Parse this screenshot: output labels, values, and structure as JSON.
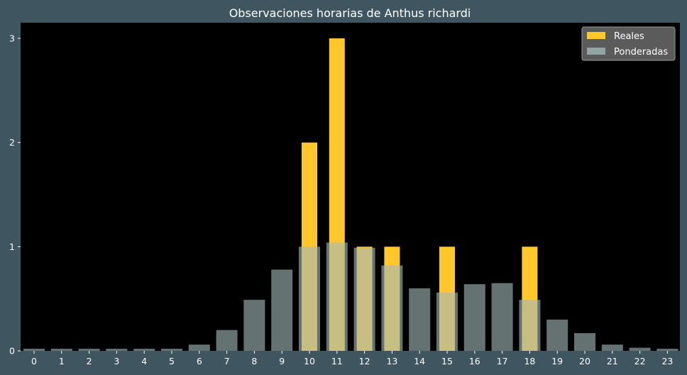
{
  "chart_data": {
    "type": "bar",
    "title": "Observaciones horarias de Anthus richardi",
    "xlabel": "",
    "ylabel": "",
    "categories": [
      "0",
      "1",
      "2",
      "3",
      "4",
      "5",
      "6",
      "7",
      "8",
      "9",
      "10",
      "11",
      "12",
      "13",
      "14",
      "15",
      "16",
      "17",
      "18",
      "19",
      "20",
      "21",
      "22",
      "23"
    ],
    "series": [
      {
        "name": "Reales",
        "color": "#ffc72c",
        "values": [
          0,
          0,
          0,
          0,
          0,
          0,
          0,
          0,
          0,
          0,
          2,
          3,
          1,
          1,
          0,
          1,
          0,
          0,
          1,
          0,
          0,
          0,
          0,
          0
        ]
      },
      {
        "name": "Ponderadas",
        "color": "#a3b8b8",
        "values": [
          0.02,
          0.02,
          0.02,
          0.02,
          0.02,
          0.02,
          0.06,
          0.2,
          0.49,
          0.78,
          1.0,
          1.04,
          0.99,
          0.82,
          0.6,
          0.56,
          0.64,
          0.65,
          0.49,
          0.3,
          0.17,
          0.06,
          0.03,
          0.02
        ]
      }
    ],
    "yticks": [
      "0",
      "1",
      "2",
      "3"
    ],
    "ylim": [
      0,
      3.15
    ],
    "legend_position": "top-right",
    "grid": false
  },
  "colors": {
    "background": "#3f5661",
    "plot_area": "#000000",
    "text": "#ffffff"
  }
}
